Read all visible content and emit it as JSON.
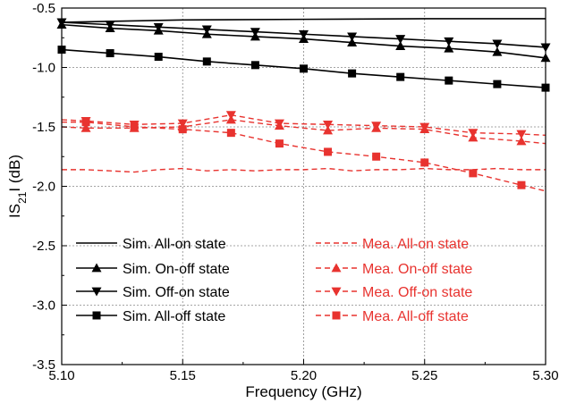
{
  "chart_data": {
    "type": "line",
    "xlabel": "Frequency (GHz)",
    "ylabel": {
      "main": "IS",
      "sub": "21",
      "rest": "I (dB)"
    },
    "xlim": [
      5.1,
      5.3
    ],
    "ylim": [
      -3.5,
      -0.5
    ],
    "xticks": [
      5.1,
      5.15,
      5.2,
      5.25,
      5.3
    ],
    "xtick_labels": [
      "5.10",
      "5.15",
      "5.20",
      "5.25",
      "5.30"
    ],
    "yticks": [
      -3.5,
      -3.0,
      -2.5,
      -2.0,
      -1.5,
      -1.0,
      -0.5
    ],
    "ytick_labels": [
      "-3.5",
      "-3.0",
      "-2.5",
      "-2.0",
      "-1.5",
      "-1.0",
      "-0.5"
    ],
    "grid": true,
    "legend_position": "bottom",
    "colors": {
      "sim": "#000000",
      "mea": "#e8332f",
      "grid": "#888888"
    },
    "series": [
      {
        "name": "Sim. All-on state",
        "color": "#000000",
        "dashed": false,
        "marker": "none",
        "x": [
          5.1,
          5.15,
          5.2,
          5.25,
          5.3
        ],
        "y": [
          -0.62,
          -0.6,
          -0.595,
          -0.59,
          -0.59
        ]
      },
      {
        "name": "Sim. On-off state",
        "color": "#000000",
        "dashed": false,
        "marker": "triangle-up",
        "x": [
          5.1,
          5.12,
          5.14,
          5.16,
          5.18,
          5.2,
          5.22,
          5.24,
          5.26,
          5.28,
          5.3
        ],
        "y": [
          -0.64,
          -0.67,
          -0.69,
          -0.72,
          -0.74,
          -0.76,
          -0.79,
          -0.82,
          -0.84,
          -0.87,
          -0.92
        ]
      },
      {
        "name": "Sim. Off-on state",
        "color": "#000000",
        "dashed": false,
        "marker": "triangle-down",
        "x": [
          5.1,
          5.12,
          5.14,
          5.16,
          5.18,
          5.2,
          5.22,
          5.24,
          5.26,
          5.28,
          5.3
        ],
        "y": [
          -0.62,
          -0.64,
          -0.66,
          -0.68,
          -0.7,
          -0.72,
          -0.74,
          -0.76,
          -0.78,
          -0.8,
          -0.83
        ]
      },
      {
        "name": "Sim. All-off state",
        "color": "#000000",
        "dashed": false,
        "marker": "square",
        "x": [
          5.1,
          5.12,
          5.14,
          5.16,
          5.18,
          5.2,
          5.22,
          5.24,
          5.26,
          5.28,
          5.3
        ],
        "y": [
          -0.85,
          -0.88,
          -0.91,
          -0.95,
          -0.98,
          -1.01,
          -1.05,
          -1.08,
          -1.11,
          -1.14,
          -1.17
        ]
      },
      {
        "name": "Mea. All-on state",
        "color": "#e8332f",
        "dashed": true,
        "marker": "none",
        "x": [
          5.1,
          5.11,
          5.12,
          5.13,
          5.14,
          5.15,
          5.16,
          5.17,
          5.18,
          5.19,
          5.2,
          5.21,
          5.22,
          5.23,
          5.24,
          5.25,
          5.26,
          5.27,
          5.28,
          5.29,
          5.3
        ],
        "y": [
          -1.86,
          -1.86,
          -1.87,
          -1.88,
          -1.86,
          -1.85,
          -1.87,
          -1.86,
          -1.87,
          -1.86,
          -1.86,
          -1.85,
          -1.87,
          -1.86,
          -1.86,
          -1.85,
          -1.86,
          -1.86,
          -1.85,
          -1.86,
          -1.86
        ]
      },
      {
        "name": "Mea. On-off state",
        "color": "#e8332f",
        "dashed": true,
        "marker": "triangle-up",
        "x": [
          5.1,
          5.11,
          5.13,
          5.15,
          5.17,
          5.19,
          5.21,
          5.23,
          5.25,
          5.27,
          5.29,
          5.3
        ],
        "y": [
          -1.5,
          -1.51,
          -1.51,
          -1.5,
          -1.44,
          -1.49,
          -1.53,
          -1.51,
          -1.52,
          -1.59,
          -1.62,
          -1.64
        ]
      },
      {
        "name": "Mea. Off-on state",
        "color": "#e8332f",
        "dashed": true,
        "marker": "triangle-down",
        "x": [
          5.1,
          5.11,
          5.13,
          5.15,
          5.17,
          5.19,
          5.21,
          5.23,
          5.25,
          5.27,
          5.29,
          5.3
        ],
        "y": [
          -1.44,
          -1.45,
          -1.48,
          -1.47,
          -1.4,
          -1.47,
          -1.48,
          -1.49,
          -1.5,
          -1.55,
          -1.56,
          -1.57
        ]
      },
      {
        "name": "Mea. All-off state",
        "color": "#e8332f",
        "dashed": true,
        "marker": "square",
        "x": [
          5.1,
          5.11,
          5.13,
          5.15,
          5.17,
          5.19,
          5.21,
          5.23,
          5.25,
          5.27,
          5.29,
          5.3
        ],
        "y": [
          -1.46,
          -1.46,
          -1.5,
          -1.52,
          -1.55,
          -1.64,
          -1.71,
          -1.75,
          -1.8,
          -1.89,
          -1.99,
          -2.04
        ]
      }
    ]
  }
}
